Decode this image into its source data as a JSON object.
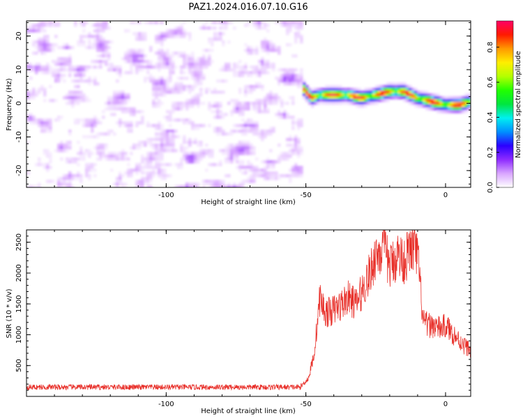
{
  "title": "PAZ1.2024.016.07.10.G16",
  "chart_data": [
    {
      "type": "heatmap",
      "xlabel": "Height of straight line (km)",
      "ylabel": "Frequency (Hz)",
      "xlim": [
        -150,
        9
      ],
      "ylim": [
        -25,
        24.5
      ],
      "xticks": [
        "-100",
        "-50",
        "0"
      ],
      "yticks": [
        "20",
        "10",
        "0",
        "-10",
        "-20"
      ],
      "colorbar": {
        "label": "Normalized spectral amplitude",
        "range": [
          0,
          0.95
        ],
        "ticks": [
          "0.0",
          "0.2",
          "0.4",
          "0.6",
          "0.8"
        ],
        "colors": [
          "#ffffff",
          "#d9a6ff",
          "#8e2cff",
          "#2b00ff",
          "#0090ff",
          "#00f0f0",
          "#00e640",
          "#22ff00",
          "#b4ff00",
          "#ffee00",
          "#ff9900",
          "#ff1a00",
          "#ff0066"
        ]
      },
      "noise_region_x": [
        -150,
        -51
      ],
      "signal_trace": {
        "x": [
          -51,
          -48,
          -45,
          -40,
          -35,
          -30,
          -25,
          -20,
          -15,
          -10,
          -5,
          0,
          5,
          9
        ],
        "y": [
          4.5,
          1.5,
          2.5,
          2.5,
          2.5,
          1.5,
          2.5,
          3.5,
          3.5,
          1.5,
          0.5,
          -0.5,
          -0.5,
          0.5
        ],
        "peak_amplitude": 0.95
      }
    },
    {
      "type": "line",
      "xlabel": "Height of straight line (km)",
      "ylabel": "SNR (10 * v/v)",
      "xlim": [
        -150,
        9
      ],
      "ylim": [
        0,
        2700
      ],
      "xticks": [
        "-100",
        "-50",
        "0"
      ],
      "yticks": [
        "500",
        "1000",
        "1500",
        "2000",
        "2500"
      ],
      "color": "#e8302a",
      "series": [
        {
          "x": [
            -150,
            -140,
            -130,
            -120,
            -110,
            -100,
            -90,
            -80,
            -70,
            -60,
            -52,
            -49,
            -47,
            -45,
            -43,
            -40,
            -37,
            -35,
            -32,
            -30,
            -27,
            -25,
            -22,
            -20,
            -17,
            -15,
            -12,
            -10,
            -8,
            -6,
            -4,
            -2,
            0,
            3,
            6,
            9
          ],
          "y": [
            150,
            150,
            150,
            150,
            150,
            150,
            150,
            150,
            150,
            150,
            150,
            300,
            700,
            1600,
            1350,
            1400,
            1500,
            1600,
            1500,
            1700,
            2000,
            2300,
            2400,
            2100,
            2300,
            2200,
            2400,
            2300,
            1200,
            1150,
            1150,
            1100,
            1150,
            1000,
            850,
            750
          ]
        }
      ]
    }
  ]
}
